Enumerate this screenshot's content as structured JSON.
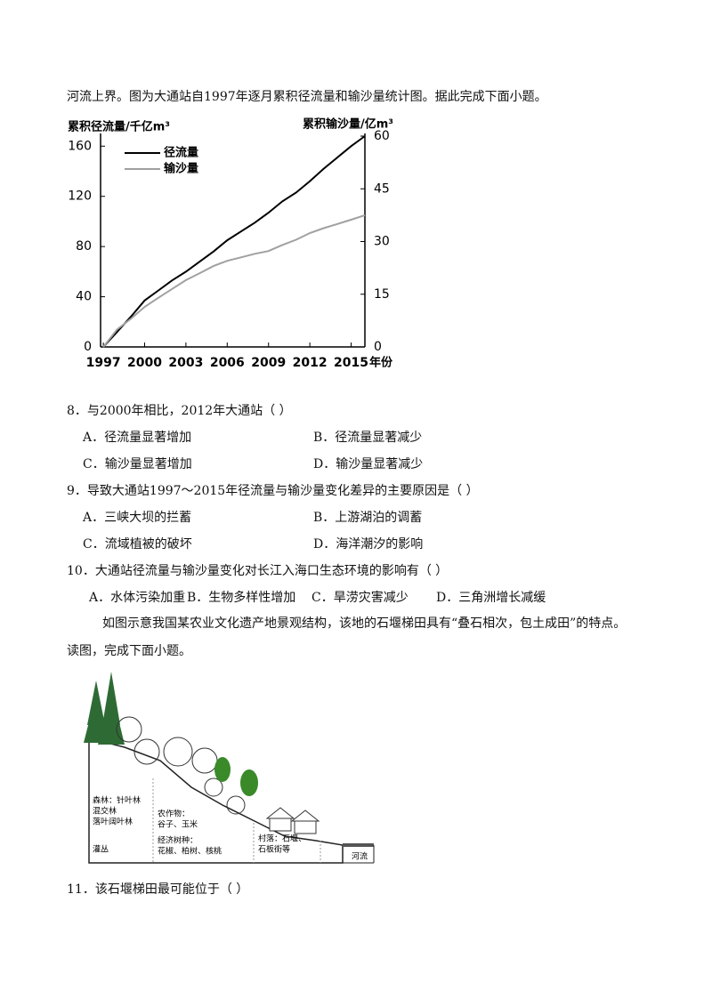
{
  "intro": "河流上界。图为大通站自1997年逐月累积径流量和输沙量统计图。据此完成下面小题。",
  "chart_data": {
    "type": "line",
    "left_axis_title": "累积径流量/千亿m³",
    "right_axis_title": "累积输沙量/亿m³",
    "x_axis_label": "年份",
    "x": [
      1997,
      1998,
      1999,
      2000,
      2001,
      2002,
      2003,
      2004,
      2005,
      2006,
      2007,
      2008,
      2009,
      2010,
      2011,
      2012,
      2013,
      2014,
      2015,
      2016
    ],
    "series": [
      {
        "name": "径流量",
        "color": "#000000",
        "values": [
          0,
          12,
          24,
          37,
          45,
          53,
          60,
          68,
          76,
          85,
          92,
          99,
          107,
          116,
          123,
          132,
          142,
          151,
          160,
          168
        ]
      },
      {
        "name": "输沙量",
        "color": "#a0a0a0",
        "axis": "y2",
        "values": [
          0,
          5,
          8,
          11.4,
          14,
          16.5,
          19,
          21,
          23,
          24.5,
          25.5,
          26.5,
          27.3,
          29,
          30.5,
          32.4,
          33.8,
          35,
          36.2,
          37.5
        ]
      }
    ],
    "xlim": [
      1996.8,
      2016
    ],
    "xticks": [
      1997,
      2000,
      2003,
      2006,
      2009,
      2012,
      2015
    ],
    "ylim": [
      0,
      168
    ],
    "yticks": [
      0,
      40,
      80,
      120,
      160
    ],
    "y2lim": [
      0,
      60
    ],
    "y2ticks": [
      0,
      15,
      30,
      45,
      60
    ]
  },
  "questions": [
    {
      "stem": "8．与2000年相比，2012年大通站（ ）",
      "options": [
        "A．径流量显著增加",
        "B．径流量显著减少",
        "C．输沙量显著增加",
        "D．输沙量显著减少"
      ]
    },
    {
      "stem": "9．导致大通站1997～2015年径流量与输沙量变化差异的主要原因是（ ）",
      "options": [
        "A．三峡大坝的拦蓄",
        "B．上游湖泊的调蓄",
        "C．流域植被的破坏",
        "D．海洋潮汐的影响"
      ]
    },
    {
      "stem": "10．大通站径流量与输沙量变化对长江入海口生态环境的影响有（ ）",
      "options": [
        "A．水体污染加重",
        "B．生物多样性增加",
        "C．旱涝灾害减少",
        "D．三角洲增长减缓"
      ]
    }
  ],
  "passage": [
    "如图示意我国某农业文化遗产地景观结构，该地的石堰梯田具有“叠石相次，包土成田”的特点。",
    "读图，完成下面小题。"
  ],
  "diagram": {
    "labels": [
      "森林：针叶林",
      "混交林",
      "落叶阔叶林",
      "灌丛",
      "农作物：",
      "谷子、玉米",
      "经济树种：",
      "花椒、柏树、核桃",
      "村落：石堰、",
      "石板街等",
      "河流"
    ]
  },
  "question11": "11．该石堰梯田最可能位于（ ）"
}
